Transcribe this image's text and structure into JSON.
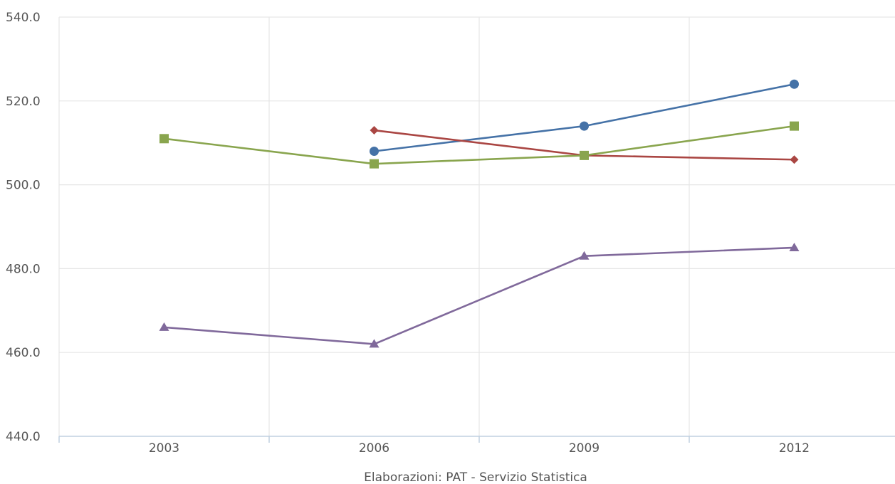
{
  "chart_data": {
    "type": "line",
    "categories": [
      "2003",
      "2006",
      "2009",
      "2012"
    ],
    "y_ticks": [
      "440.0",
      "460.0",
      "480.0",
      "500.0",
      "520.0",
      "540.0"
    ],
    "ylim": [
      440,
      540
    ],
    "grid": true,
    "source": "Elaborazioni: PAT - Servizio Statistica",
    "series": [
      {
        "values": [
          null,
          508,
          514,
          524
        ],
        "color": "#4572a7",
        "marker": "circle"
      },
      {
        "values": [
          null,
          513,
          507,
          506
        ],
        "color": "#aa4643",
        "marker": "diamond"
      },
      {
        "values": [
          511,
          505,
          507,
          514
        ],
        "color": "#89a54e",
        "marker": "square"
      },
      {
        "values": [
          466,
          462,
          483,
          485
        ],
        "color": "#80699b",
        "marker": "triangle"
      }
    ]
  }
}
